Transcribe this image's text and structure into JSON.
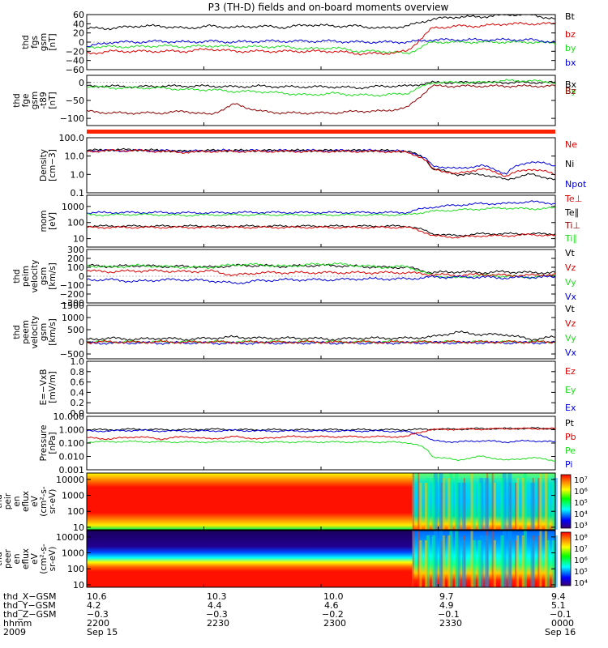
{
  "title": "P3 (TH-D) fields and on-board moments overview",
  "colors": {
    "black": "#000000",
    "red": "#dd0000",
    "green": "#22dd22",
    "blue": "#0000dd",
    "darkred": "#8b0000",
    "orange_bar": "#ff2200"
  },
  "chart_data": [
    {
      "type": "line",
      "id": "fgs",
      "ylabel_lines": [
        "thd",
        "fgs",
        "gsm",
        "[nT]"
      ],
      "yticks": [
        "60",
        "40",
        "20",
        "0",
        "−20",
        "−40",
        "−60"
      ],
      "tick_values": [
        60,
        40,
        20,
        0,
        -20,
        -40,
        -60
      ],
      "ylim": [
        -60,
        60
      ],
      "scale": "linear",
      "legend": [
        {
          "label": "Bt",
          "color": "#000000"
        },
        {
          "label": "bz",
          "color": "#dd0000"
        },
        {
          "label": "by",
          "color": "#22dd22"
        },
        {
          "label": "bx",
          "color": "#0000dd"
        }
      ],
      "series": [
        {
          "color": "#000000",
          "values": [
            30,
            30,
            35,
            35,
            30,
            35,
            32,
            35,
            32,
            38,
            35,
            35,
            30,
            35,
            50,
            55,
            55,
            60,
            60,
            50
          ]
        },
        {
          "color": "#22dd22",
          "values": [
            -10,
            -10,
            -10,
            -8,
            -10,
            -8,
            -10,
            -10,
            -10,
            -15,
            -12,
            -20,
            -20,
            -25,
            0,
            0,
            0,
            0,
            0,
            -2
          ]
        },
        {
          "color": "#0000dd",
          "values": [
            -10,
            0,
            0,
            2,
            0,
            2,
            0,
            2,
            2,
            2,
            2,
            0,
            0,
            0,
            5,
            5,
            5,
            5,
            5,
            0
          ]
        },
        {
          "color": "#dd0000",
          "values": [
            -25,
            -20,
            -20,
            -20,
            -20,
            -15,
            -20,
            -20,
            -20,
            -20,
            -20,
            -25,
            -25,
            -20,
            30,
            35,
            35,
            40,
            40,
            40
          ]
        }
      ]
    },
    {
      "type": "line",
      "id": "fge",
      "ylabel_lines": [
        "thd",
        "fge",
        "gsm",
        "-t89",
        "[nT]"
      ],
      "yticks": [
        "0",
        "−50",
        "−100"
      ],
      "tick_values": [
        0,
        -50,
        -100
      ],
      "ylim": [
        -120,
        20
      ],
      "scale": "linear",
      "legend": [
        {
          "label": "Bx",
          "color": "#000000"
        },
        {
          "label": "By",
          "color": "#22dd22"
        },
        {
          "label": "Bz",
          "color": "#8b0000"
        }
      ],
      "series": [
        {
          "color": "#000000",
          "values": [
            -10,
            -10,
            -12,
            -10,
            -10,
            -10,
            -12,
            -10,
            -12,
            -12,
            -12,
            -15,
            -10,
            -10,
            0,
            0,
            0,
            0,
            0,
            0
          ]
        },
        {
          "color": "#22dd22",
          "values": [
            -10,
            -15,
            -15,
            -15,
            -20,
            -20,
            -25,
            -25,
            -30,
            -35,
            -30,
            -35,
            -35,
            -30,
            0,
            0,
            0,
            5,
            5,
            0
          ]
        },
        {
          "color": "#8b0000",
          "values": [
            -80,
            -85,
            -85,
            -85,
            -80,
            -90,
            -60,
            -80,
            -85,
            -85,
            -85,
            -80,
            -80,
            -70,
            -10,
            -10,
            -10,
            -10,
            -10,
            -10
          ]
        }
      ]
    },
    {
      "type": "line",
      "id": "density",
      "ylabel_lines": [
        "Density",
        "[cm−3]"
      ],
      "yticks": [
        "100.0",
        "10.0",
        "1.0",
        "0.1"
      ],
      "tick_values": [
        100,
        10,
        1,
        0.1
      ],
      "ylim": [
        0.1,
        100
      ],
      "scale": "log",
      "legend": [
        {
          "label": "Ne",
          "color": "#dd0000"
        },
        {
          "label": "Ni",
          "color": "#000000"
        },
        {
          "label": "Npot",
          "color": "#0000dd"
        }
      ],
      "series": [
        {
          "color": "#0000dd",
          "values": [
            20,
            20,
            20,
            20,
            18,
            20,
            20,
            20,
            20,
            20,
            20,
            20,
            20,
            18,
            3,
            2,
            3,
            1,
            5,
            3
          ]
        },
        {
          "color": "#000000",
          "values": [
            20,
            22,
            22,
            20,
            18,
            20,
            20,
            20,
            20,
            20,
            20,
            20,
            20,
            18,
            2,
            1,
            1,
            0.5,
            1,
            0.5
          ]
        },
        {
          "color": "#dd0000",
          "values": [
            18,
            20,
            20,
            18,
            16,
            18,
            18,
            18,
            18,
            18,
            18,
            18,
            18,
            16,
            2,
            1,
            2,
            0.8,
            2,
            1
          ]
        }
      ]
    },
    {
      "type": "line",
      "id": "temperature",
      "ylabel_lines": [
        "mom",
        "[eV]"
      ],
      "yticks": [
        "1000",
        "100",
        "10"
      ],
      "tick_values": [
        1000,
        100,
        10
      ],
      "ylim": [
        3,
        5000
      ],
      "scale": "log",
      "legend": [
        {
          "label": "Te⊥",
          "color": "#dd0000"
        },
        {
          "label": "Te∥",
          "color": "#000000"
        },
        {
          "label": "Ti⊥",
          "color": "#8b0000"
        },
        {
          "label": "Ti∥",
          "color": "#22dd22"
        }
      ],
      "series": [
        {
          "color": "#0000dd",
          "values": [
            400,
            420,
            420,
            420,
            400,
            400,
            420,
            430,
            420,
            420,
            420,
            420,
            420,
            420,
            900,
            1200,
            1500,
            1500,
            2000,
            1500
          ]
        },
        {
          "color": "#22dd22",
          "values": [
            300,
            300,
            320,
            300,
            280,
            300,
            300,
            300,
            300,
            300,
            300,
            300,
            300,
            300,
            500,
            600,
            700,
            800,
            700,
            800
          ]
        },
        {
          "color": "#000000",
          "values": [
            60,
            60,
            60,
            60,
            60,
            60,
            60,
            60,
            60,
            60,
            60,
            60,
            60,
            60,
            20,
            15,
            20,
            20,
            20,
            20
          ]
        },
        {
          "color": "#dd0000",
          "values": [
            50,
            50,
            50,
            50,
            50,
            50,
            50,
            50,
            50,
            50,
            50,
            50,
            50,
            50,
            15,
            12,
            15,
            15,
            18,
            15
          ]
        }
      ]
    },
    {
      "type": "line",
      "id": "velocity-peim",
      "ylabel_lines": [
        "thd",
        "peim",
        "velocity",
        "gsm",
        "[km/s]"
      ],
      "yticks": [
        "300",
        "200",
        "100",
        "0",
        "−100",
        "−200",
        "−300"
      ],
      "tick_values": [
        300,
        200,
        100,
        0,
        -100,
        -200,
        -300
      ],
      "ylim": [
        -300,
        300
      ],
      "scale": "linear",
      "legend": [
        {
          "label": "Vt",
          "color": "#000000"
        },
        {
          "label": "Vz",
          "color": "#dd0000"
        },
        {
          "label": "Vy",
          "color": "#22dd22"
        },
        {
          "label": "Vx",
          "color": "#0000dd"
        }
      ],
      "series": [
        {
          "color": "#000000",
          "values": [
            120,
            110,
            120,
            110,
            110,
            100,
            120,
            120,
            110,
            120,
            120,
            110,
            100,
            100,
            40,
            50,
            40,
            50,
            40,
            40
          ]
        },
        {
          "color": "#22dd22",
          "values": [
            120,
            100,
            120,
            110,
            100,
            100,
            130,
            130,
            110,
            130,
            140,
            120,
            100,
            110,
            10,
            -20,
            10,
            0,
            -10,
            10
          ]
        },
        {
          "color": "#dd0000",
          "values": [
            60,
            50,
            60,
            60,
            50,
            60,
            10,
            40,
            40,
            40,
            40,
            40,
            40,
            40,
            20,
            10,
            20,
            10,
            10,
            20
          ]
        },
        {
          "color": "#0000dd",
          "values": [
            -40,
            -40,
            -60,
            -40,
            -40,
            -50,
            -80,
            -50,
            -40,
            -40,
            -40,
            -30,
            -30,
            -30,
            -10,
            -10,
            -10,
            -20,
            -10,
            -10
          ]
        }
      ]
    },
    {
      "type": "line",
      "id": "velocity-peem",
      "ylabel_lines": [
        "thd",
        "peem",
        "velocity",
        "gsm",
        "[km/s]"
      ],
      "yticks": [
        "1500",
        "1000",
        "500",
        "0",
        "−500"
      ],
      "tick_values": [
        1500,
        1000,
        500,
        0,
        -500
      ],
      "ylim": [
        -700,
        1500
      ],
      "scale": "linear",
      "legend": [
        {
          "label": "Vt",
          "color": "#000000"
        },
        {
          "label": "Vz",
          "color": "#dd0000"
        },
        {
          "label": "Vy",
          "color": "#22dd22"
        },
        {
          "label": "Vx",
          "color": "#0000dd"
        }
      ],
      "series": [
        {
          "color": "#000000",
          "values": [
            100,
            150,
            100,
            150,
            100,
            150,
            200,
            150,
            150,
            150,
            100,
            150,
            150,
            150,
            200,
            400,
            300,
            300,
            100,
            200
          ]
        },
        {
          "color": "#22dd22",
          "values": [
            0,
            0,
            0,
            0,
            0,
            0,
            0,
            0,
            0,
            0,
            0,
            0,
            0,
            0,
            0,
            0,
            0,
            0,
            0,
            0
          ]
        },
        {
          "color": "#0000dd",
          "values": [
            -50,
            -50,
            -40,
            -50,
            -40,
            -50,
            -60,
            -50,
            -50,
            -40,
            -50,
            -50,
            -40,
            -50,
            -30,
            -40,
            -30,
            -40,
            -30,
            -40
          ]
        },
        {
          "color": "#dd0000",
          "values": [
            -20,
            0,
            -20,
            0,
            -20,
            0,
            -20,
            0,
            -20,
            0,
            -20,
            0,
            -20,
            0,
            -10,
            0,
            -10,
            0,
            -10,
            0
          ]
        }
      ]
    },
    {
      "type": "line",
      "id": "efield",
      "ylabel_lines": [
        "E=−VxB",
        "[mV/m]"
      ],
      "yticks": [
        "1.0",
        "0.8",
        "0.6",
        "0.4",
        "0.2",
        "0.0"
      ],
      "tick_values": [
        1.0,
        0.8,
        0.6,
        0.4,
        0.2,
        0.0
      ],
      "ylim": [
        0,
        1
      ],
      "scale": "linear",
      "legend": [
        {
          "label": "Ez",
          "color": "#dd0000"
        },
        {
          "label": "Ey",
          "color": "#22dd22"
        },
        {
          "label": "Ex",
          "color": "#0000dd"
        }
      ],
      "series": []
    },
    {
      "type": "line",
      "id": "pressure",
      "ylabel_lines": [
        "Pressure",
        "[nPa]"
      ],
      "yticks": [
        "10.000",
        "1.000",
        "0.100",
        "0.010",
        "0.001"
      ],
      "tick_values": [
        10,
        1,
        0.1,
        0.01,
        0.001
      ],
      "ylim": [
        0.001,
        10
      ],
      "scale": "log",
      "legend": [
        {
          "label": "Pt",
          "color": "#000000"
        },
        {
          "label": "Pb",
          "color": "#dd0000"
        },
        {
          "label": "Pe",
          "color": "#22dd22"
        },
        {
          "label": "Pi",
          "color": "#0000dd"
        }
      ],
      "series": [
        {
          "color": "#000000",
          "values": [
            1.0,
            1.0,
            1.1,
            1.0,
            1.0,
            1.1,
            1.0,
            1.0,
            1.0,
            1.0,
            1.0,
            1.0,
            1.0,
            1.0,
            1.1,
            1.1,
            1.2,
            1.2,
            1.3,
            1.2
          ]
        },
        {
          "color": "#0000dd",
          "values": [
            0.8,
            0.8,
            0.9,
            0.8,
            0.8,
            0.8,
            0.9,
            0.8,
            0.8,
            0.8,
            0.8,
            0.8,
            0.8,
            0.7,
            0.15,
            0.12,
            0.15,
            0.12,
            0.15,
            0.12
          ]
        },
        {
          "color": "#22dd22",
          "values": [
            0.12,
            0.13,
            0.13,
            0.12,
            0.12,
            0.12,
            0.13,
            0.12,
            0.12,
            0.12,
            0.12,
            0.12,
            0.12,
            0.11,
            0.01,
            0.005,
            0.01,
            0.005,
            0.008,
            0.005
          ]
        },
        {
          "color": "#dd0000",
          "values": [
            0.25,
            0.2,
            0.3,
            0.2,
            0.3,
            0.2,
            0.3,
            0.2,
            0.3,
            0.3,
            0.3,
            0.3,
            0.3,
            0.3,
            1.0,
            1.1,
            1.1,
            1.2,
            1.2,
            1.2
          ]
        }
      ]
    },
    {
      "type": "heatmap",
      "id": "peir",
      "ylabel_lines": [
        "thd",
        "peir",
        "en",
        "eflux",
        "eV",
        "(cm²-s-",
        "sr-eV)"
      ],
      "yticks": [
        "10000",
        "1000",
        "100",
        "10"
      ],
      "tick_values": [
        10000,
        1000,
        100,
        10
      ],
      "ylim": [
        7,
        25000
      ],
      "scale": "log",
      "colorbar_ticks": [
        "10⁷",
        "10⁶",
        "10⁵",
        "10⁴",
        "10³"
      ]
    },
    {
      "type": "heatmap",
      "id": "peer",
      "ylabel_lines": [
        "thd",
        "peer",
        "en",
        "eflux",
        "eV",
        "(cm²-s-",
        "sr-eV)"
      ],
      "yticks": [
        "10000",
        "1000",
        "100",
        "10"
      ],
      "tick_values": [
        10000,
        1000,
        100,
        10
      ],
      "ylim": [
        7,
        25000
      ],
      "scale": "log",
      "colorbar_ticks": [
        "10⁸",
        "10⁷",
        "10⁶",
        "10⁵",
        "10⁴"
      ]
    }
  ],
  "time_axis": {
    "row_labels": [
      "thd_X−GSM",
      "thd_Y−GSM",
      "thd_Z−GSM",
      "hhmm",
      "2009"
    ],
    "ticks": [
      {
        "x": "10.6",
        "y": "4.2",
        "z": "−0.3",
        "hhmm": "2200",
        "date": "Sep 15"
      },
      {
        "x": "10.3",
        "y": "4.4",
        "z": "−0.3",
        "hhmm": "2230",
        "date": ""
      },
      {
        "x": "10.0",
        "y": "4.6",
        "z": "−0.2",
        "hhmm": "2300",
        "date": ""
      },
      {
        "x": "9.7",
        "y": "4.9",
        "z": "−0.1",
        "hhmm": "2330",
        "date": ""
      },
      {
        "x": "9.4",
        "y": "5.1",
        "z": "−0.1",
        "hhmm": "0000",
        "date": "Sep 16"
      }
    ]
  }
}
